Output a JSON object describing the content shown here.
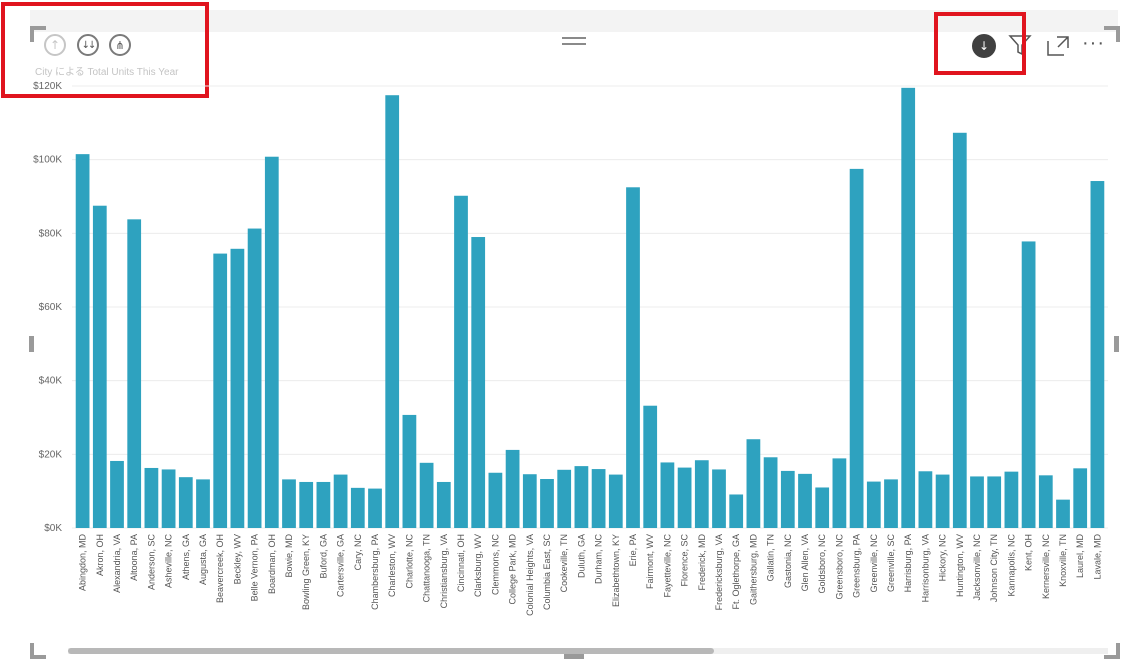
{
  "chart_data": {
    "type": "bar",
    "title": "City による Total Units This Year",
    "xlabel": "",
    "ylabel": "",
    "ylim": [
      0,
      120000
    ],
    "yticks": [
      "$0K",
      "$20K",
      "$40K",
      "$60K",
      "$80K",
      "$100K",
      "$120K"
    ],
    "grid": true,
    "bar_color": "#2ea2bf",
    "categories": [
      "Abingdon, MD",
      "Akron, OH",
      "Alexandria, VA",
      "Altoona, PA",
      "Anderson, SC",
      "Asheville, NC",
      "Athens, GA",
      "Augusta, GA",
      "Beavercreek, OH",
      "Beckley, WV",
      "Belle Vernon, PA",
      "Boardman, OH",
      "Bowie, MD",
      "Bowling Green, KY",
      "Buford, GA",
      "Cartersville, GA",
      "Cary, NC",
      "Chambersburg, PA",
      "Charleston, WV",
      "Charlotte, NC",
      "Chattanooga, TN",
      "Christiansburg, VA",
      "Cincinnati, OH",
      "Clarksburg, WV",
      "Clemmons, NC",
      "College Park, MD",
      "Colonial Heights, VA",
      "Columbia East, SC",
      "Cookeville, TN",
      "Duluth, GA",
      "Durham, NC",
      "Elizabethtown, KY",
      "Erie, PA",
      "Fairmont, WV",
      "Fayetteville, NC",
      "Florence, SC",
      "Frederick, MD",
      "Fredericksburg, VA",
      "Ft. Oglethorpe, GA",
      "Gaithersburg, MD",
      "Gallatin, TN",
      "Gastonia, NC",
      "Glen Allen, VA",
      "Goldsboro, NC",
      "Greensboro, NC",
      "Greensburg, PA",
      "Greenville, NC",
      "Greenville, SC",
      "Harrisburg, PA",
      "Harrisonburg, VA",
      "Hickory, NC",
      "Huntington, WV",
      "Jacksonville, NC",
      "Johnson City, TN",
      "Kannapolis, NC",
      "Kent, OH",
      "Kernersville, NC",
      "Knoxville, TN",
      "Laurel, MD",
      "Lavale, MD"
    ],
    "values": [
      101500,
      87500,
      18200,
      83800,
      16300,
      15900,
      13800,
      13200,
      74500,
      75800,
      81300,
      100800,
      13200,
      12500,
      12500,
      14500,
      10900,
      10700,
      117500,
      30700,
      17700,
      12500,
      90200,
      79000,
      15000,
      21200,
      14600,
      13300,
      15800,
      16800,
      16000,
      14500,
      92500,
      33200,
      17800,
      16400,
      18400,
      15900,
      9100,
      24100,
      19200,
      15500,
      14700,
      11000,
      18900,
      97500,
      12600,
      13200,
      119500,
      15400,
      14500,
      107300,
      14000,
      14000,
      15300,
      77800,
      14300,
      7700,
      16200,
      94200
    ]
  },
  "header": {
    "drill_up_icon": "arrow-up-circle-icon",
    "drill_all_icon": "double-arrow-down-circle-icon",
    "expand_icon": "branch-down-circle-icon",
    "drill_mode_icon": "arrow-down-filled-circle-icon",
    "filter_icon": "funnel-icon",
    "focus_icon": "focus-mode-icon",
    "more_label": "···"
  },
  "highlight_color": "#e0141e"
}
